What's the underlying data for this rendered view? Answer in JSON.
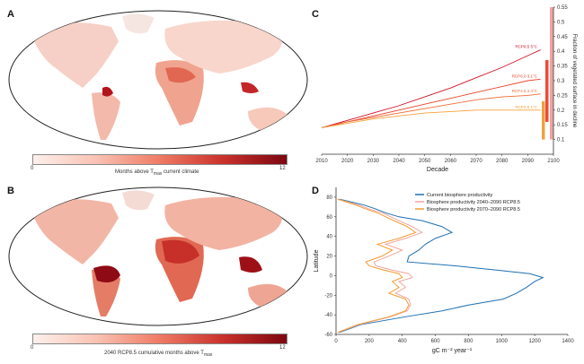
{
  "panels": {
    "a": {
      "letter": "A",
      "colorbar": {
        "min": "0",
        "max": "12",
        "label": "Months above T",
        "label_sub": "max",
        "label_tail": " current climate"
      }
    },
    "b": {
      "letter": "B",
      "colorbar": {
        "min": "0",
        "max": "12",
        "label": "2040 RCP8.5 cumulative months above T",
        "label_sub": "max",
        "label_tail": ""
      }
    },
    "c": {
      "letter": "C"
    },
    "d": {
      "letter": "D"
    }
  },
  "colors": {
    "low": "#fdf0ec",
    "high": "#7d0610",
    "land": "#f4f4f4"
  },
  "chart_data": [
    {
      "type": "line",
      "panel": "C",
      "xlabel": "Decade",
      "ylabel": "Fraction of vegetated surface in decline",
      "xlim": [
        2010,
        2100
      ],
      "ylim": [
        0.05,
        0.55
      ],
      "x_ticks": [
        2010,
        2020,
        2030,
        2040,
        2050,
        2060,
        2070,
        2080,
        2090,
        2100
      ],
      "y_ticks": [
        0.1,
        0.15,
        0.2,
        0.25,
        0.3,
        0.35,
        0.4,
        0.45,
        0.5,
        0.55
      ],
      "x": [
        2010,
        2020,
        2030,
        2040,
        2050,
        2060,
        2070,
        2080,
        2090,
        2095
      ],
      "series": [
        {
          "name": "RCP8.5 5°C",
          "color": "#d0132a",
          "values": [
            0.14,
            0.165,
            0.19,
            0.215,
            0.245,
            0.275,
            0.31,
            0.345,
            0.385,
            0.405
          ]
        },
        {
          "name": "RCP6.0 3.1°C",
          "color": "#e8442a",
          "values": [
            0.14,
            0.16,
            0.18,
            0.2,
            0.22,
            0.24,
            0.26,
            0.28,
            0.3,
            0.305
          ]
        },
        {
          "name": "RCP4.5 2.4°C",
          "color": "#ee6a34",
          "values": [
            0.14,
            0.16,
            0.175,
            0.19,
            0.205,
            0.22,
            0.235,
            0.245,
            0.25,
            0.255
          ]
        },
        {
          "name": "RCP2.6 1°C",
          "color": "#f5a23a",
          "values": [
            0.14,
            0.155,
            0.17,
            0.18,
            0.19,
            0.195,
            0.2,
            0.2,
            0.2,
            0.2
          ]
        }
      ],
      "bars": [
        {
          "color": "#f3a3a0",
          "from": 0.1,
          "to": 0.55
        },
        {
          "color": "#ef4a36",
          "from": 0.16,
          "to": 0.37
        },
        {
          "color": "#f0a040",
          "from": 0.1,
          "to": 0.23
        }
      ]
    },
    {
      "type": "line",
      "panel": "D",
      "xlabel": "gC m⁻² year⁻¹",
      "ylabel": "Latitude",
      "xlim": [
        0,
        1400
      ],
      "ylim": [
        -60,
        90
      ],
      "x_ticks": [
        0,
        200,
        400,
        600,
        800,
        1000,
        1200,
        1400
      ],
      "y_ticks": [
        -60,
        -40,
        -20,
        0,
        20,
        40,
        60,
        80
      ],
      "latitudes": [
        -58,
        -50,
        -42,
        -36,
        -30,
        -24,
        -18,
        -12,
        -6,
        -2,
        2,
        6,
        10,
        14,
        20,
        26,
        32,
        38,
        44,
        50,
        56,
        60,
        64,
        68,
        72,
        78
      ],
      "series": [
        {
          "name": "Current biosphere productivity",
          "color": "#1f6fb2",
          "values": [
            20,
            150,
            420,
            640,
            800,
            1010,
            1090,
            1150,
            1200,
            1250,
            1170,
            950,
            720,
            430,
            440,
            500,
            540,
            600,
            700,
            640,
            520,
            380,
            300,
            240,
            170,
            20
          ]
        },
        {
          "name": "Biosphere productivity 2040–2090 RCP8.5",
          "color": "#f2a5a0",
          "values": [
            10,
            140,
            330,
            430,
            450,
            440,
            360,
            420,
            380,
            460,
            440,
            330,
            240,
            230,
            320,
            400,
            300,
            420,
            520,
            460,
            380,
            330,
            280,
            200,
            140,
            10
          ]
        },
        {
          "name": "Biosphere productivity 2070–2090 RCP8.5",
          "color": "#f29a2e",
          "values": [
            10,
            130,
            320,
            420,
            440,
            420,
            320,
            380,
            340,
            400,
            380,
            280,
            200,
            180,
            280,
            340,
            250,
            380,
            480,
            430,
            350,
            300,
            250,
            180,
            120,
            10
          ]
        }
      ]
    }
  ]
}
